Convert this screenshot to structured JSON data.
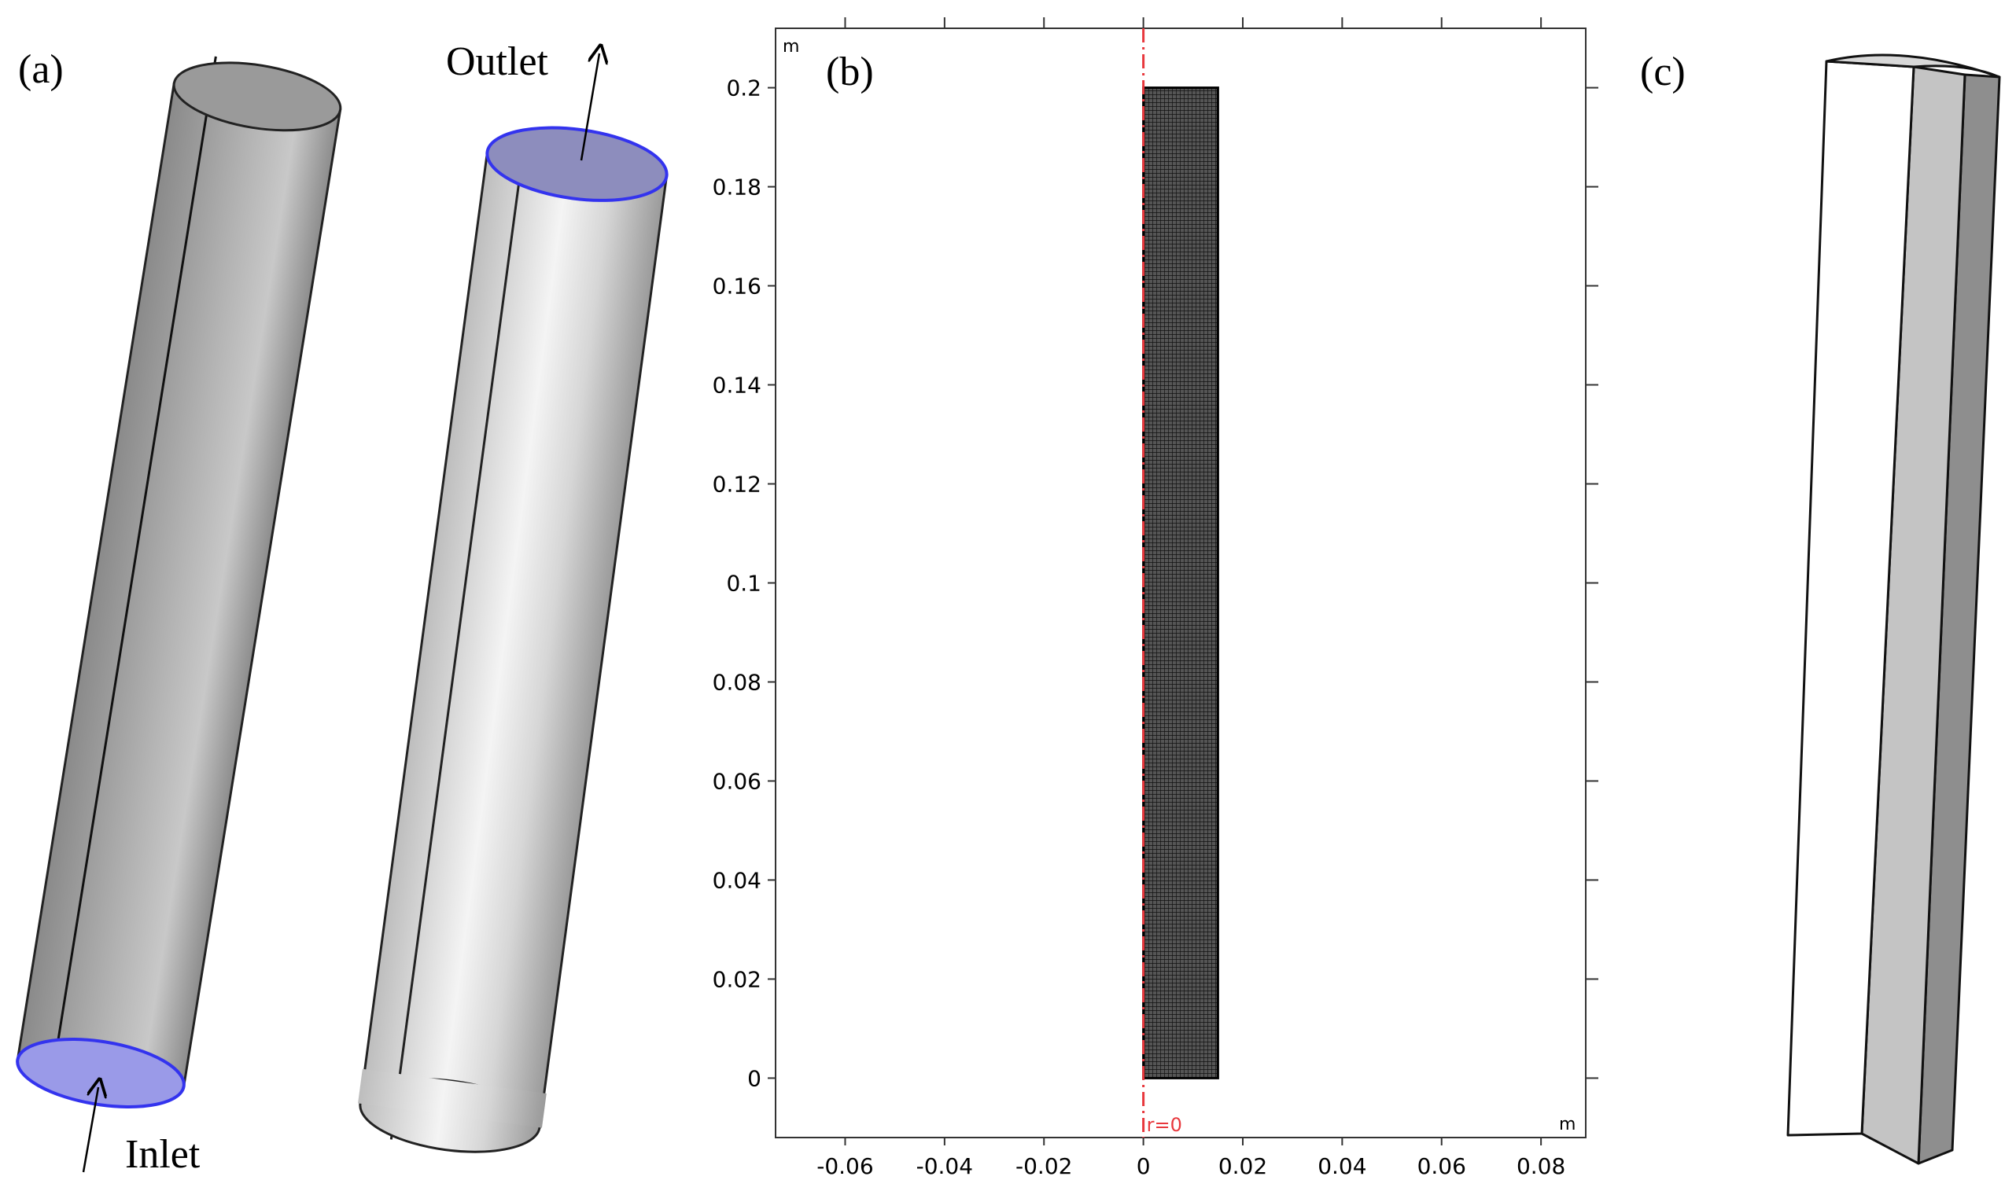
{
  "panel_a": {
    "label": "(a)",
    "outlet": "Outlet",
    "inlet": "Inlet"
  },
  "chart_data": {
    "type": "mesh",
    "label": "(b)",
    "x_unit": "m",
    "y_unit": "m",
    "axis_label": "r=0",
    "xlim": [
      -0.074,
      0.089
    ],
    "ylim": [
      -0.012,
      0.212
    ],
    "xticks": [
      -0.06,
      -0.04,
      -0.02,
      0,
      0.02,
      0.04,
      0.06,
      0.08
    ],
    "yticks": [
      0,
      0.02,
      0.04,
      0.06,
      0.08,
      0.1,
      0.12,
      0.14,
      0.16,
      0.18,
      0.2
    ],
    "domain": {
      "x": [
        0,
        0.015
      ],
      "y": [
        0,
        0.2
      ]
    }
  },
  "panel_c": {
    "label": "(c)"
  }
}
